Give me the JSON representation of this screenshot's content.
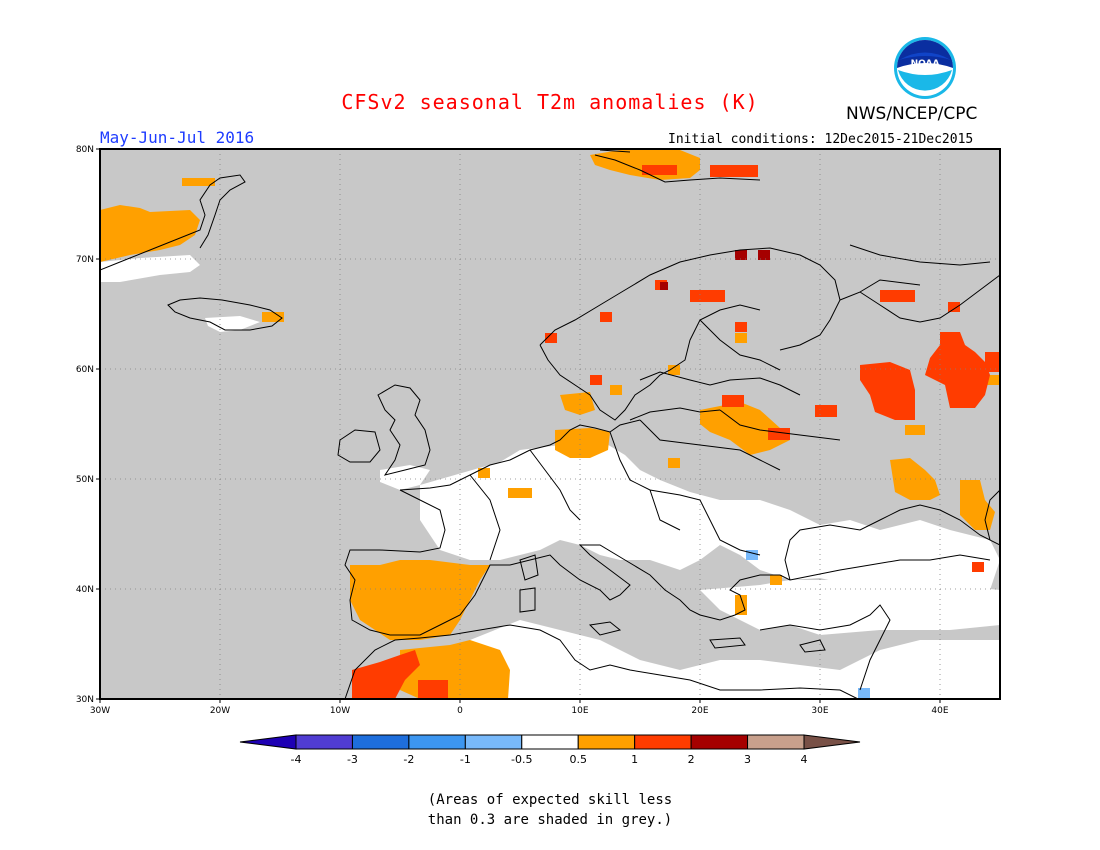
{
  "title": "CFSv2 seasonal T2m anomalies (K)",
  "agency": "NWS/NCEP/CPC",
  "logo_text": "NOAA",
  "period": "May-Jun-Jul 2016",
  "initial_conditions": "Initial conditions: 12Dec2015-21Dec2015",
  "note_line1": "(Areas of expected skill less",
  "note_line2": "than 0.3 are shaded in grey.)",
  "map": {
    "lon_range": [
      -30,
      45
    ],
    "lat_range": [
      30,
      80
    ],
    "lon_ticks": [
      "30W",
      "20W",
      "10W",
      "0",
      "10E",
      "20E",
      "30E",
      "40E"
    ],
    "lat_ticks": [
      "30N",
      "40N",
      "50N",
      "60N",
      "70N",
      "80N"
    ],
    "colors": {
      "background": "#c8c8c8",
      "white": "#ffffff",
      "orange": "#ffa000",
      "red_orange": "#ff3c00",
      "dark_red": "#a50000",
      "light_blue": "#78b9fa",
      "brown": "#c8a08c"
    }
  },
  "colorbar": {
    "colors": [
      "#1e00b4",
      "#503cd2",
      "#1e6edc",
      "#3c96f0",
      "#78b9fa",
      "#ffffff",
      "#ffa000",
      "#ff3c00",
      "#a50000",
      "#c8a08c",
      "#785046"
    ],
    "labels": [
      "-4",
      "-3",
      "-2",
      "-1",
      "-0.5",
      "0.5",
      "1",
      "2",
      "3",
      "4"
    ]
  }
}
